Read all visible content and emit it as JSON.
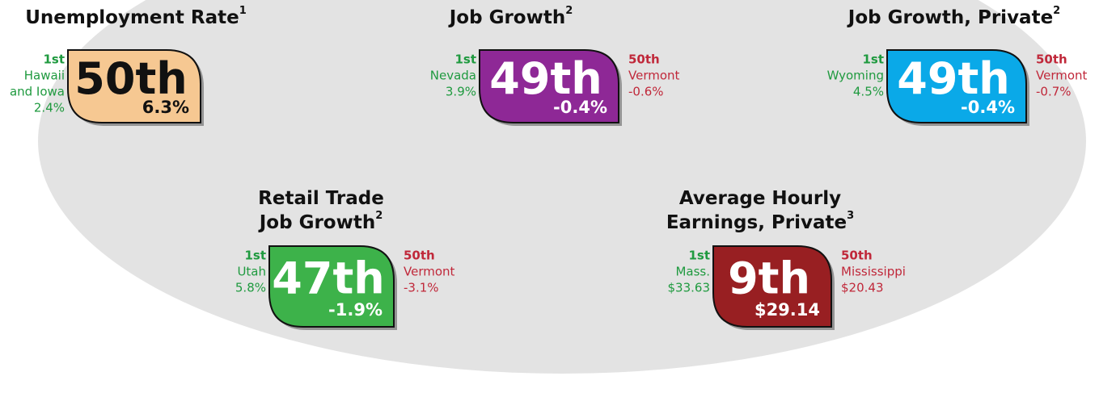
{
  "panels": [
    {
      "title": [
        "Unemployment Rate"
      ],
      "note": "1",
      "rank": "50th",
      "value": "6.3%",
      "color": "#f6c892",
      "text_color": "#111111",
      "best": {
        "rank": "1st",
        "name": [
          "Hawaii",
          "and Iowa"
        ],
        "value": "2.4%"
      }
    },
    {
      "title": [
        "Job Growth"
      ],
      "note": "2",
      "rank": "49th",
      "value": "-0.4%",
      "color": "#8e2896",
      "text_color": "#ffffff",
      "best": {
        "rank": "1st",
        "name": [
          "Nevada"
        ],
        "value": "3.9%"
      },
      "worst": {
        "rank": "50th",
        "name": [
          "Vermont"
        ],
        "value": "-0.6%"
      }
    },
    {
      "title": [
        "Job Growth, Private"
      ],
      "note": "2",
      "rank": "49th",
      "value": "-0.4%",
      "color": "#0aa9e8",
      "text_color": "#ffffff",
      "best": {
        "rank": "1st",
        "name": [
          "Wyoming"
        ],
        "value": "4.5%"
      },
      "worst": {
        "rank": "50th",
        "name": [
          "Vermont"
        ],
        "value": "-0.7%"
      }
    },
    {
      "title": [
        "Retail Trade",
        "Job Growth"
      ],
      "note": "2",
      "rank": "47th",
      "value": "-1.9%",
      "color": "#3db24a",
      "text_color": "#ffffff",
      "best": {
        "rank": "1st",
        "name": [
          "Utah"
        ],
        "value": "5.8%"
      },
      "worst": {
        "rank": "50th",
        "name": [
          "Vermont"
        ],
        "value": "-3.1%"
      }
    },
    {
      "title": [
        "Average Hourly",
        "Earnings, Private"
      ],
      "note": "3",
      "rank": "9th",
      "value": "$29.14",
      "color": "#981f22",
      "text_color": "#ffffff",
      "best": {
        "rank": "1st",
        "name": [
          "Mass."
        ],
        "value": "$33.63"
      },
      "worst": {
        "rank": "50th",
        "name": [
          "Mississippi"
        ],
        "value": "$20.43"
      }
    }
  ]
}
